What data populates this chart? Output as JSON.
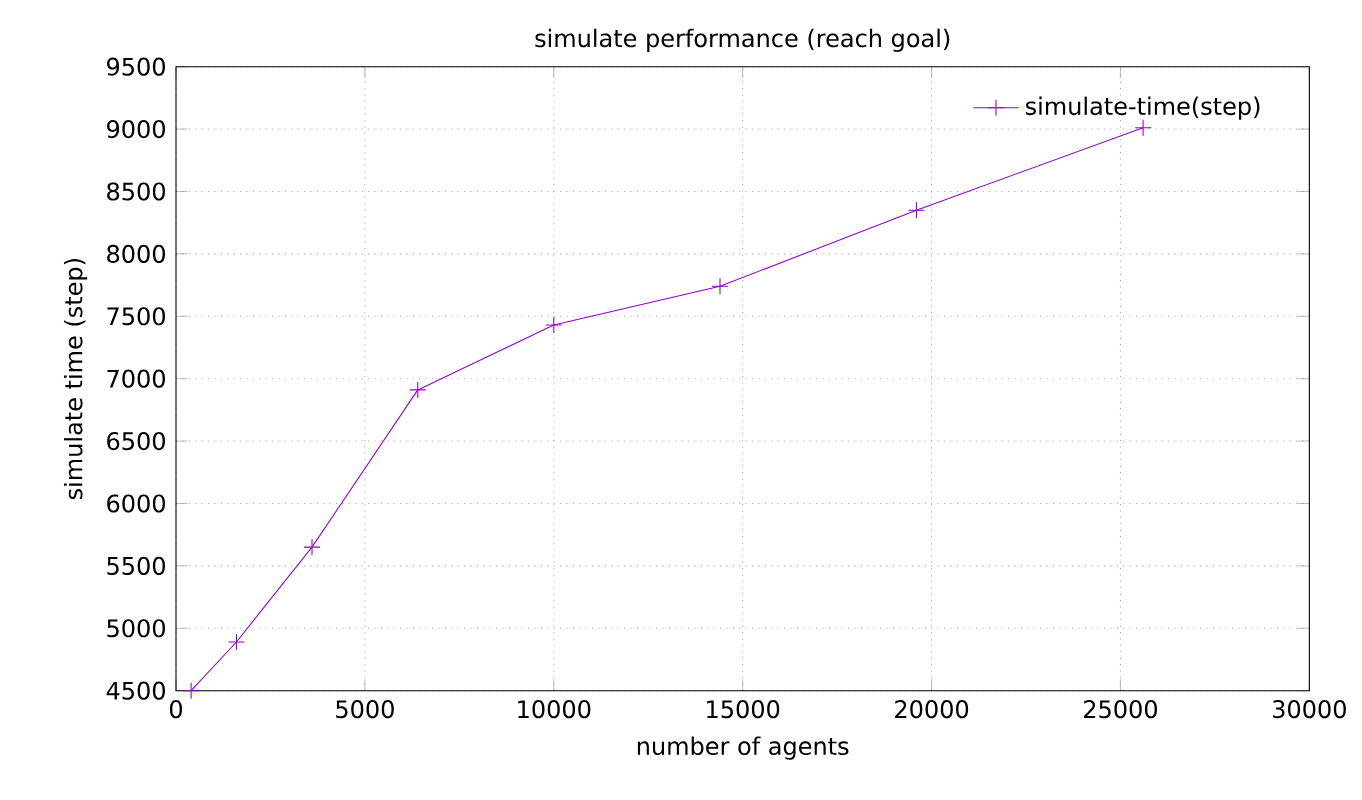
{
  "chart_data": {
    "type": "line",
    "title": "simulate performance (reach goal)",
    "xlabel": "number of agents",
    "ylabel": "simulate time (step)",
    "x": [
      400,
      1600,
      3600,
      6400,
      10000,
      14400,
      19600,
      25600
    ],
    "series": [
      {
        "name": "simulate-time(step)",
        "color": "#9400d3",
        "values": [
          4500,
          4890,
          5650,
          6910,
          7430,
          7740,
          8350,
          9010
        ]
      }
    ],
    "xlim": [
      0,
      30000
    ],
    "xticks": [
      0,
      5000,
      10000,
      15000,
      20000,
      25000,
      30000
    ],
    "ylim": [
      4500,
      9500
    ],
    "yticks": [
      4500,
      5000,
      5500,
      6000,
      6500,
      7000,
      7500,
      8000,
      8500,
      9000,
      9500
    ],
    "grid": true,
    "legend": "top right",
    "marker": "cross",
    "line_style": "solid"
  }
}
